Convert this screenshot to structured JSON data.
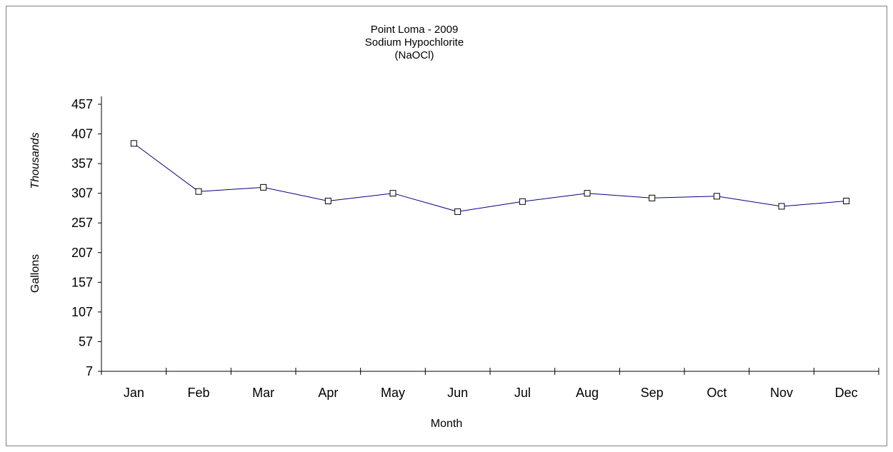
{
  "chart_data": {
    "type": "line",
    "title_lines": [
      "Point Loma - 2009",
      "Sodium Hypochlorite",
      "(NaOCl)"
    ],
    "xlabel": "Month",
    "ylabel_top": "Thousands",
    "ylabel_bottom": "Gallons",
    "categories": [
      "Jan",
      "Feb",
      "Mar",
      "Apr",
      "May",
      "Jun",
      "Jul",
      "Aug",
      "Sep",
      "Oct",
      "Nov",
      "Dec"
    ],
    "y_ticks": [
      "7",
      "57",
      "107",
      "157",
      "207",
      "257",
      "307",
      "357",
      "407",
      "457"
    ],
    "ylim": [
      7,
      457
    ],
    "series": [
      {
        "values": [
          391,
          310,
          317,
          294,
          307,
          276,
          293,
          307,
          299,
          302,
          285,
          294
        ],
        "color": "#000080"
      }
    ],
    "grid": false,
    "legend": "none"
  }
}
